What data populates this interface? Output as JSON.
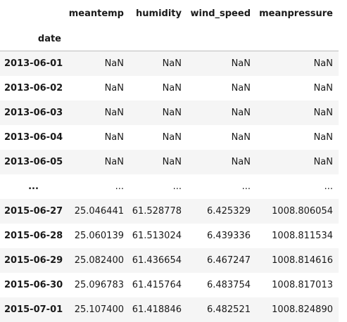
{
  "table": {
    "index_name": "date",
    "columns": [
      "meantemp",
      "humidity",
      "wind_speed",
      "meanpressure"
    ],
    "rows": [
      {
        "index": "2013-06-01",
        "values": [
          "NaN",
          "NaN",
          "NaN",
          "NaN"
        ]
      },
      {
        "index": "2013-06-02",
        "values": [
          "NaN",
          "NaN",
          "NaN",
          "NaN"
        ]
      },
      {
        "index": "2013-06-03",
        "values": [
          "NaN",
          "NaN",
          "NaN",
          "NaN"
        ]
      },
      {
        "index": "2013-06-04",
        "values": [
          "NaN",
          "NaN",
          "NaN",
          "NaN"
        ]
      },
      {
        "index": "2013-06-05",
        "values": [
          "NaN",
          "NaN",
          "NaN",
          "NaN"
        ]
      },
      {
        "index": "...",
        "values": [
          "...",
          "...",
          "...",
          "..."
        ]
      },
      {
        "index": "2015-06-27",
        "values": [
          "25.046441",
          "61.528778",
          "6.425329",
          "1008.806054"
        ]
      },
      {
        "index": "2015-06-28",
        "values": [
          "25.060139",
          "61.513024",
          "6.439336",
          "1008.811534"
        ]
      },
      {
        "index": "2015-06-29",
        "values": [
          "25.082400",
          "61.436654",
          "6.467247",
          "1008.814616"
        ]
      },
      {
        "index": "2015-06-30",
        "values": [
          "25.096783",
          "61.415764",
          "6.483754",
          "1008.817013"
        ]
      },
      {
        "index": "2015-07-01",
        "values": [
          "25.107400",
          "61.418846",
          "6.482521",
          "1008.824890"
        ]
      }
    ]
  }
}
